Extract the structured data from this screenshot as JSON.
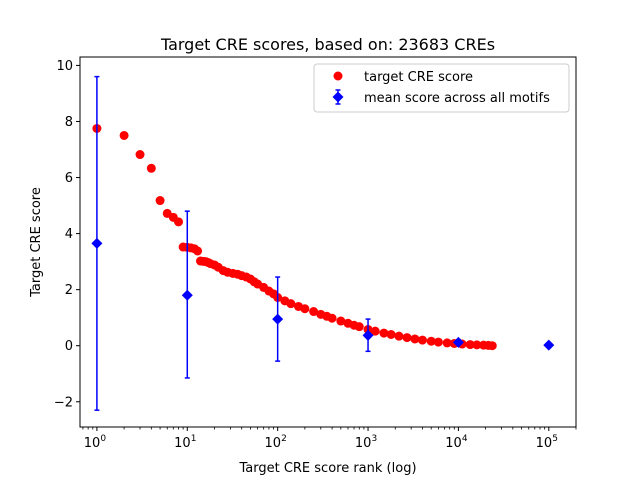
{
  "chart_data": {
    "type": "scatter",
    "title": "Target CRE scores, based on: 23683 CREs",
    "xlabel": "Target CRE score rank (log)",
    "ylabel": "Target CRE score",
    "xscale": "log",
    "xlim": [
      0.65,
      200000
    ],
    "ylim": [
      -2.9,
      10.3
    ],
    "yticks": [
      -2,
      0,
      2,
      4,
      6,
      8,
      10
    ],
    "xticks": [
      {
        "value": 1,
        "base": "10",
        "exp": "0"
      },
      {
        "value": 10,
        "base": "10",
        "exp": "1"
      },
      {
        "value": 100,
        "base": "10",
        "exp": "2"
      },
      {
        "value": 1000,
        "base": "10",
        "exp": "3"
      },
      {
        "value": 10000,
        "base": "10",
        "exp": "4"
      },
      {
        "value": 100000,
        "base": "10",
        "exp": "5"
      }
    ],
    "grid": false,
    "legend_position": "top-right",
    "series": [
      {
        "name": "target CRE score",
        "kind": "scatter",
        "marker": "circle",
        "color": "#ff0000",
        "points": [
          [
            1,
            7.75
          ],
          [
            2,
            7.5
          ],
          [
            3,
            6.82
          ],
          [
            4,
            6.33
          ],
          [
            5,
            5.18
          ],
          [
            6,
            4.72
          ],
          [
            7,
            4.58
          ],
          [
            8,
            4.42
          ],
          [
            9,
            3.52
          ],
          [
            10,
            3.51
          ],
          [
            11,
            3.49
          ],
          [
            12,
            3.46
          ],
          [
            13,
            3.38
          ],
          [
            14,
            3.02
          ],
          [
            15,
            3.01
          ],
          [
            16,
            3.0
          ],
          [
            17,
            2.97
          ],
          [
            18,
            2.93
          ],
          [
            20,
            2.88
          ],
          [
            22,
            2.8
          ],
          [
            25,
            2.68
          ],
          [
            28,
            2.62
          ],
          [
            32,
            2.58
          ],
          [
            36,
            2.55
          ],
          [
            40,
            2.5
          ],
          [
            45,
            2.45
          ],
          [
            50,
            2.38
          ],
          [
            55,
            2.28
          ],
          [
            60,
            2.2
          ],
          [
            70,
            2.08
          ],
          [
            80,
            1.95
          ],
          [
            90,
            1.85
          ],
          [
            100,
            1.72
          ],
          [
            120,
            1.6
          ],
          [
            140,
            1.5
          ],
          [
            170,
            1.4
          ],
          [
            200,
            1.32
          ],
          [
            250,
            1.22
          ],
          [
            300,
            1.12
          ],
          [
            350,
            1.05
          ],
          [
            400,
            0.98
          ],
          [
            500,
            0.88
          ],
          [
            600,
            0.8
          ],
          [
            700,
            0.73
          ],
          [
            800,
            0.68
          ],
          [
            1000,
            0.58
          ],
          [
            1200,
            0.52
          ],
          [
            1500,
            0.45
          ],
          [
            1800,
            0.4
          ],
          [
            2200,
            0.34
          ],
          [
            2700,
            0.29
          ],
          [
            3300,
            0.24
          ],
          [
            4000,
            0.2
          ],
          [
            5000,
            0.16
          ],
          [
            6000,
            0.13
          ],
          [
            7500,
            0.1
          ],
          [
            9000,
            0.08
          ],
          [
            11000,
            0.06
          ],
          [
            13500,
            0.04
          ],
          [
            16000,
            0.03
          ],
          [
            19000,
            0.02
          ],
          [
            21500,
            0.01
          ],
          [
            23683,
            0.0
          ]
        ]
      },
      {
        "name": "mean score across all motifs",
        "kind": "errorbar",
        "marker": "diamond",
        "color": "#0000ff",
        "points": [
          {
            "x": 1,
            "y": 3.65,
            "low": -2.3,
            "high": 9.6
          },
          {
            "x": 10,
            "y": 1.8,
            "low": -1.15,
            "high": 4.8
          },
          {
            "x": 100,
            "y": 0.95,
            "low": -0.55,
            "high": 2.45
          },
          {
            "x": 1000,
            "y": 0.37,
            "low": -0.2,
            "high": 0.95
          },
          {
            "x": 10000,
            "y": 0.12,
            "low": 0.05,
            "high": 0.2
          },
          {
            "x": 100000,
            "y": 0.02,
            "low": 0.02,
            "high": 0.02
          }
        ]
      }
    ]
  }
}
